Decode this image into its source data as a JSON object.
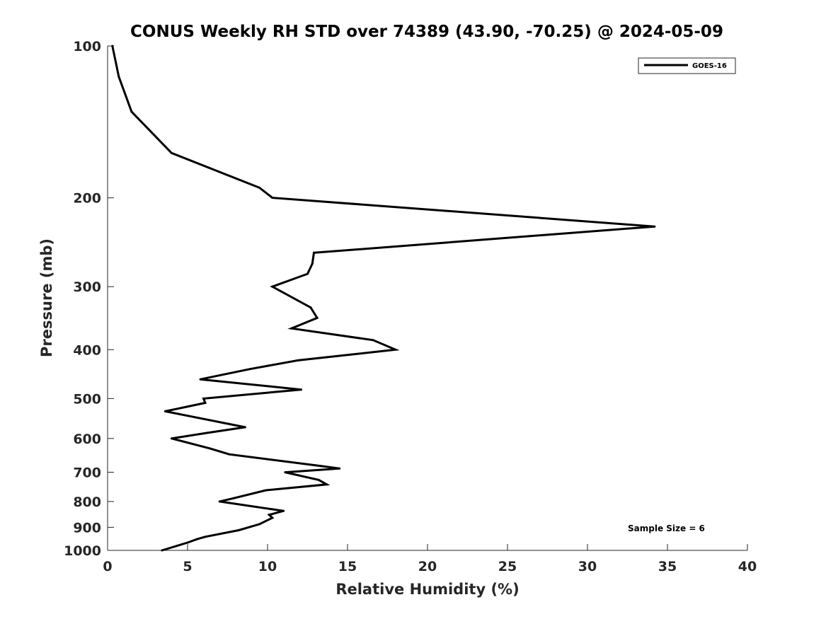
{
  "chart_data": {
    "type": "line",
    "title": "CONUS Weekly RH STD over 74389 (43.90, -70.25) @ 2024-05-09",
    "xlabel": "Relative Humidity (%)",
    "ylabel": "Pressure (mb)",
    "xlim": [
      0,
      40
    ],
    "ylim": [
      100,
      1000
    ],
    "y_scale": "log",
    "y_reversed": true,
    "grid": false,
    "legend_position": "top-right",
    "x_ticks": [
      "0",
      "5",
      "10",
      "15",
      "20",
      "25",
      "30",
      "35",
      "40"
    ],
    "y_ticks": [
      "100",
      "200",
      "300",
      "400",
      "500",
      "600",
      "700",
      "800",
      "900",
      "1000"
    ],
    "annotation": "Sample Size = 6",
    "series": [
      {
        "name": "GOES-16",
        "color": "#000000",
        "x": [
          0.3,
          0.7,
          1.5,
          4.0,
          9.5,
          10.3,
          34.2,
          12.9,
          12.8,
          12.5,
          10.3,
          12.7,
          13.1,
          11.5,
          16.6,
          18.0,
          11.9,
          8.9,
          5.8,
          12.1,
          6.0,
          6.1,
          3.6,
          8.6,
          6.2,
          4.0,
          6.4,
          7.6,
          13.3,
          14.5,
          11.1,
          13.2,
          13.7,
          9.9,
          7.9,
          7.0,
          11.0,
          10.1,
          10.3,
          9.5,
          8.2,
          6.1,
          5.6,
          5.0,
          3.4
        ],
        "y": [
          100,
          115,
          135,
          163,
          191,
          200,
          228,
          257,
          270,
          283,
          300,
          330,
          346,
          363,
          383,
          400,
          420,
          437,
          458,
          480,
          500,
          510,
          530,
          570,
          585,
          600,
          628,
          645,
          680,
          688,
          700,
          725,
          740,
          760,
          788,
          800,
          835,
          850,
          862,
          887,
          912,
          940,
          950,
          965,
          1000
        ]
      }
    ]
  }
}
